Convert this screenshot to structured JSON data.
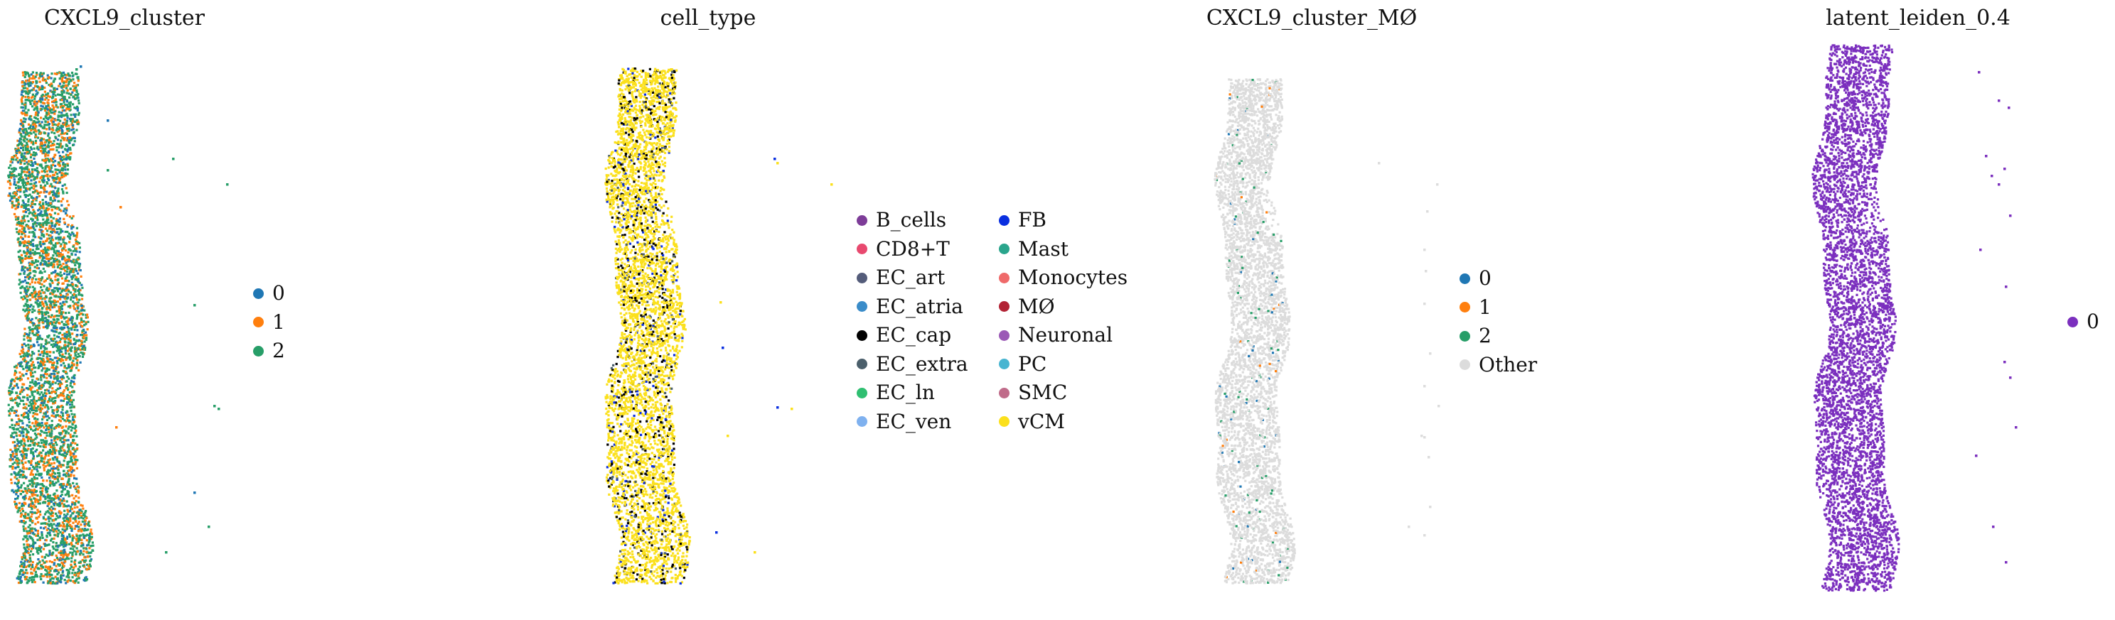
{
  "chart_data": [
    {
      "type": "scatter",
      "title": "CXCL9_cluster",
      "legend": "right",
      "categories": [
        {
          "label": "0",
          "color": "#1f77b4"
        },
        {
          "label": "1",
          "color": "#ff7f0e"
        },
        {
          "label": "2",
          "color": "#279e68"
        }
      ]
    },
    {
      "type": "scatter",
      "title": "cell_type",
      "legend": "right",
      "categories": [
        {
          "label": "B_cells",
          "color": "#7d3c98"
        },
        {
          "label": "CD8+T",
          "color": "#e8496f"
        },
        {
          "label": "EC_art",
          "color": "#545c7a"
        },
        {
          "label": "EC_atria",
          "color": "#3a8cc9"
        },
        {
          "label": "EC_cap",
          "color": "#000000"
        },
        {
          "label": "EC_extra",
          "color": "#4b5f6b"
        },
        {
          "label": "EC_ln",
          "color": "#2fbf71"
        },
        {
          "label": "EC_ven",
          "color": "#7fb1ef"
        },
        {
          "label": "FB",
          "color": "#0a2fe0"
        },
        {
          "label": "Mast",
          "color": "#2aa58c"
        },
        {
          "label": "Monocytes",
          "color": "#ef6a6a"
        },
        {
          "label": "MØ",
          "color": "#b22234"
        },
        {
          "label": "Neuronal",
          "color": "#9b59b6"
        },
        {
          "label": "PC",
          "color": "#48b5d1"
        },
        {
          "label": "SMC",
          "color": "#c06c8a"
        },
        {
          "label": "vCM",
          "color": "#fbe01c"
        }
      ]
    },
    {
      "type": "scatter",
      "title": "CXCL9_cluster_MØ",
      "legend": "right",
      "categories": [
        {
          "label": "0",
          "color": "#1f77b4"
        },
        {
          "label": "1",
          "color": "#ff7f0e"
        },
        {
          "label": "2",
          "color": "#279e68"
        },
        {
          "label": "Other",
          "color": "#dcdcdc"
        }
      ]
    },
    {
      "type": "scatter",
      "title": "latent_leiden_0.4",
      "legend": "right",
      "categories": [
        {
          "label": "0",
          "color": "#7b2fbe"
        }
      ]
    }
  ]
}
